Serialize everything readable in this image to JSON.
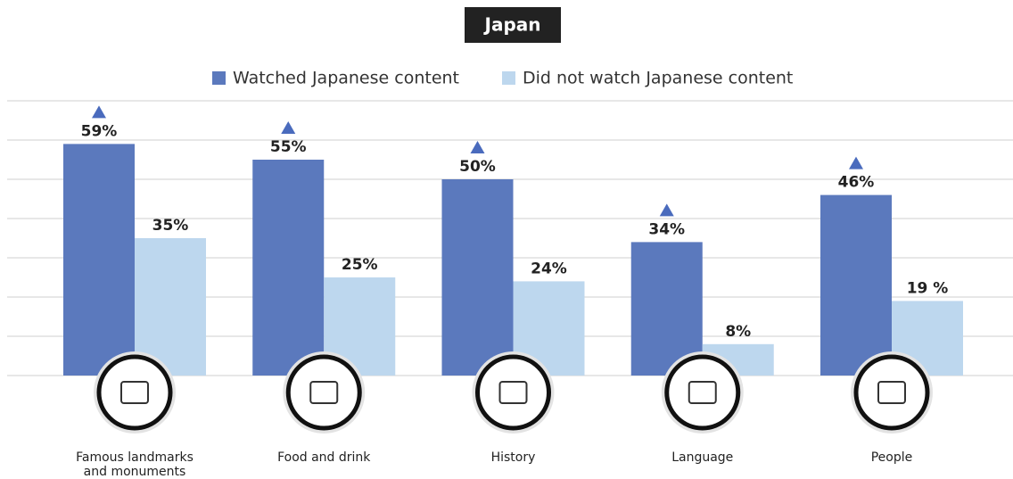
{
  "chart_data": {
    "type": "bar",
    "title": "Japan",
    "categories": [
      "Famous landmarks and monuments",
      "Food and drink",
      "History",
      "Language",
      "People"
    ],
    "series": [
      {
        "name": "Watched Japanese content",
        "color": "#5b79bd",
        "values": [
          59,
          55,
          50,
          34,
          46
        ],
        "value_labels": [
          "59%",
          "55%",
          "50%",
          "34%",
          "46%"
        ]
      },
      {
        "name": "Did not watch Japanese content",
        "color": "#bdd7ee",
        "values": [
          35,
          25,
          24,
          8,
          19
        ],
        "value_labels": [
          "35%",
          "25%",
          "24%",
          "8%",
          "19 %"
        ]
      }
    ],
    "ylim": [
      0,
      70
    ],
    "yticks": [
      0,
      10,
      20,
      30,
      40,
      50,
      60,
      70
    ],
    "grid": true
  }
}
